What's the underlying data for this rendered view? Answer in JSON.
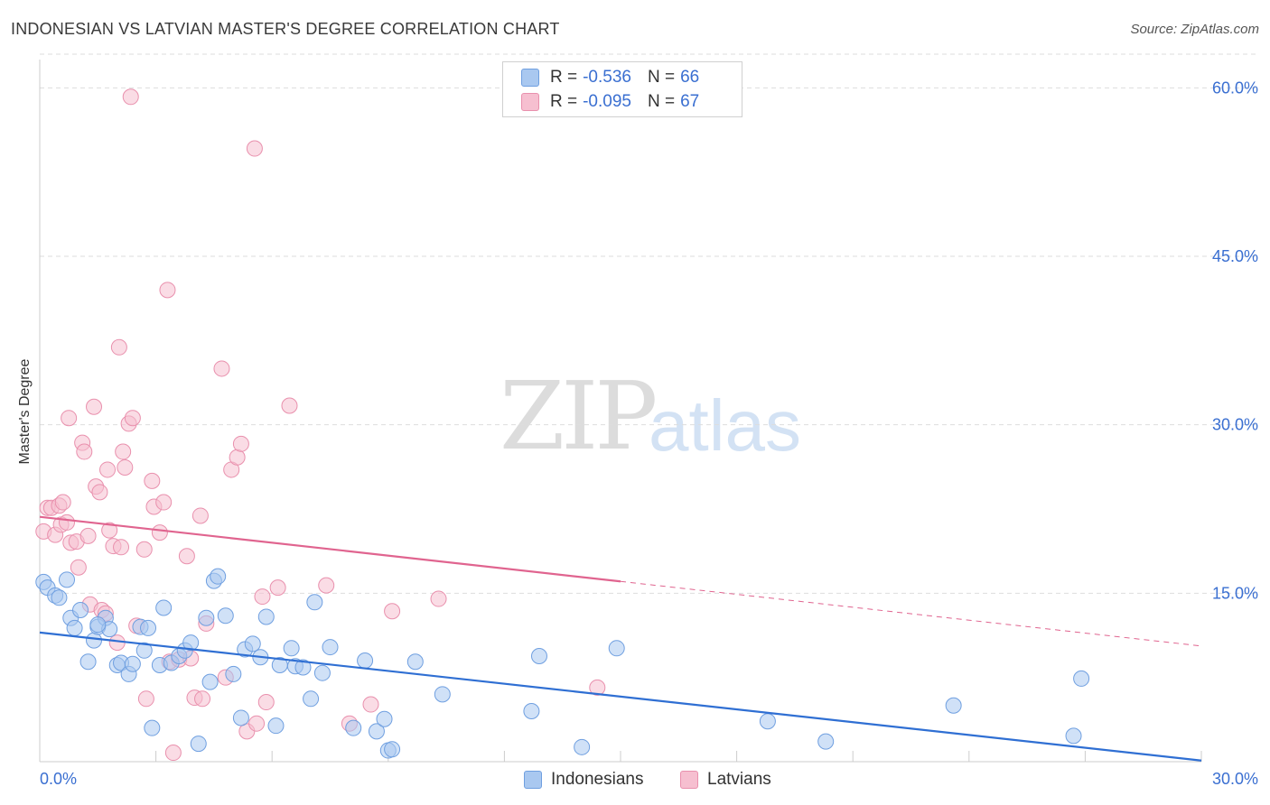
{
  "header": {
    "title": "INDONESIAN VS LATVIAN MASTER'S DEGREE CORRELATION CHART",
    "source": "Source: ZipAtlas.com"
  },
  "watermark": {
    "zip": "ZIP",
    "atlas": "atlas"
  },
  "legend": {
    "indonesians": {
      "r_label": "R =",
      "r_value": "-0.536",
      "n_label": "N =",
      "n_value": "66"
    },
    "latvians": {
      "r_label": "R =",
      "r_value": "-0.095",
      "n_label": "N =",
      "n_value": "67"
    }
  },
  "colors": {
    "indonesians_fill": "#a9c8f0",
    "indonesians_stroke": "#6f9fe0",
    "indonesians_line": "#2f6fd3",
    "latvians_fill": "#f6bfd0",
    "latvians_stroke": "#e990ad",
    "latvians_line": "#e0648f",
    "grid": "#dddddd",
    "tick_label": "#3a6fd1"
  },
  "chart_data": {
    "type": "scatter",
    "title": "INDONESIAN VS LATVIAN MASTER'S DEGREE CORRELATION CHART",
    "xlabel": "",
    "ylabel": "Master's Degree",
    "xlim": [
      0,
      30
    ],
    "ylim": [
      0,
      63
    ],
    "x_tick_labels": [
      "0.0%",
      "30.0%"
    ],
    "y_ticks": [
      15,
      30,
      45,
      60
    ],
    "y_tick_labels": [
      "15.0%",
      "30.0%",
      "45.0%",
      "60.0%"
    ],
    "grid": true,
    "legend_position": "bottom-center",
    "series": [
      {
        "name": "Indonesians",
        "r": -0.536,
        "n": 66,
        "trend": {
          "x0": 0,
          "y0": 11.5,
          "x1": 30,
          "y1": 0.1,
          "solid_until": 30
        },
        "points": [
          [
            0.1,
            16.0
          ],
          [
            0.2,
            15.5
          ],
          [
            0.4,
            14.8
          ],
          [
            0.5,
            14.6
          ],
          [
            0.7,
            16.2
          ],
          [
            0.8,
            12.8
          ],
          [
            0.9,
            11.9
          ],
          [
            1.05,
            13.5
          ],
          [
            1.25,
            8.9
          ],
          [
            1.4,
            10.8
          ],
          [
            1.5,
            12.0
          ],
          [
            1.7,
            12.8
          ],
          [
            1.8,
            11.8
          ],
          [
            2.0,
            8.6
          ],
          [
            2.1,
            8.8
          ],
          [
            2.3,
            7.8
          ],
          [
            2.4,
            8.7
          ],
          [
            2.6,
            12.0
          ],
          [
            2.7,
            9.9
          ],
          [
            2.9,
            3.0
          ],
          [
            3.1,
            8.6
          ],
          [
            3.2,
            13.7
          ],
          [
            3.4,
            8.8
          ],
          [
            3.6,
            9.4
          ],
          [
            3.75,
            9.9
          ],
          [
            3.9,
            10.6
          ],
          [
            4.1,
            1.6
          ],
          [
            4.3,
            12.8
          ],
          [
            4.4,
            7.1
          ],
          [
            4.5,
            16.1
          ],
          [
            4.6,
            16.5
          ],
          [
            4.8,
            13.0
          ],
          [
            5.0,
            7.8
          ],
          [
            5.2,
            3.9
          ],
          [
            5.3,
            10.0
          ],
          [
            5.5,
            10.5
          ],
          [
            5.7,
            9.3
          ],
          [
            5.85,
            12.9
          ],
          [
            6.1,
            3.2
          ],
          [
            6.2,
            8.6
          ],
          [
            6.5,
            10.1
          ],
          [
            6.6,
            8.5
          ],
          [
            6.8,
            8.4
          ],
          [
            7.0,
            5.6
          ],
          [
            7.1,
            14.2
          ],
          [
            7.3,
            7.9
          ],
          [
            7.5,
            10.2
          ],
          [
            8.1,
            3.0
          ],
          [
            8.4,
            9.0
          ],
          [
            8.7,
            2.7
          ],
          [
            8.9,
            3.8
          ],
          [
            9.0,
            1.0
          ],
          [
            9.1,
            1.1
          ],
          [
            9.7,
            8.9
          ],
          [
            10.4,
            6.0
          ],
          [
            12.7,
            4.5
          ],
          [
            12.9,
            9.4
          ],
          [
            14.0,
            1.3
          ],
          [
            14.9,
            10.1
          ],
          [
            18.8,
            3.6
          ],
          [
            20.3,
            1.8
          ],
          [
            23.6,
            5.0
          ],
          [
            26.7,
            2.3
          ],
          [
            26.9,
            7.4
          ],
          [
            2.8,
            11.9
          ],
          [
            1.5,
            12.2
          ]
        ]
      },
      {
        "name": "Latvians",
        "r": -0.095,
        "n": 67,
        "trend": {
          "x0": 0,
          "y0": 21.8,
          "x1": 30,
          "y1": 10.3,
          "solid_until": 15
        },
        "points": [
          [
            0.1,
            20.5
          ],
          [
            0.2,
            22.6
          ],
          [
            0.3,
            22.6
          ],
          [
            0.4,
            20.2
          ],
          [
            0.5,
            22.8
          ],
          [
            0.55,
            21.1
          ],
          [
            0.6,
            23.1
          ],
          [
            0.7,
            21.3
          ],
          [
            0.75,
            30.6
          ],
          [
            0.8,
            19.5
          ],
          [
            0.95,
            19.6
          ],
          [
            1.0,
            17.3
          ],
          [
            1.1,
            28.4
          ],
          [
            1.15,
            27.6
          ],
          [
            1.25,
            20.1
          ],
          [
            1.3,
            14.0
          ],
          [
            1.4,
            31.6
          ],
          [
            1.45,
            24.5
          ],
          [
            1.55,
            24.0
          ],
          [
            1.6,
            13.5
          ],
          [
            1.75,
            26.0
          ],
          [
            1.8,
            20.6
          ],
          [
            1.9,
            19.2
          ],
          [
            2.0,
            10.6
          ],
          [
            2.05,
            36.9
          ],
          [
            2.15,
            27.6
          ],
          [
            2.2,
            26.2
          ],
          [
            2.3,
            30.1
          ],
          [
            2.4,
            30.6
          ],
          [
            2.5,
            12.1
          ],
          [
            2.35,
            59.2
          ],
          [
            2.7,
            18.9
          ],
          [
            2.75,
            5.6
          ],
          [
            2.9,
            25.0
          ],
          [
            2.95,
            22.7
          ],
          [
            3.1,
            20.4
          ],
          [
            3.2,
            23.1
          ],
          [
            3.3,
            42.0
          ],
          [
            3.35,
            8.9
          ],
          [
            3.45,
            0.8
          ],
          [
            3.6,
            9.1
          ],
          [
            3.8,
            18.3
          ],
          [
            3.9,
            9.2
          ],
          [
            4.0,
            5.7
          ],
          [
            4.15,
            21.9
          ],
          [
            4.2,
            5.6
          ],
          [
            4.3,
            12.3
          ],
          [
            4.7,
            35.0
          ],
          [
            4.8,
            7.5
          ],
          [
            4.95,
            26.0
          ],
          [
            5.1,
            27.1
          ],
          [
            5.2,
            28.3
          ],
          [
            5.35,
            2.7
          ],
          [
            5.6,
            3.4
          ],
          [
            5.55,
            54.6
          ],
          [
            5.75,
            14.7
          ],
          [
            5.85,
            5.3
          ],
          [
            6.15,
            15.5
          ],
          [
            6.45,
            31.7
          ],
          [
            7.4,
            15.7
          ],
          [
            8.0,
            3.4
          ],
          [
            8.55,
            5.1
          ],
          [
            9.1,
            13.4
          ],
          [
            10.3,
            14.5
          ],
          [
            14.4,
            6.6
          ],
          [
            2.1,
            19.1
          ],
          [
            1.7,
            13.2
          ]
        ]
      }
    ]
  }
}
